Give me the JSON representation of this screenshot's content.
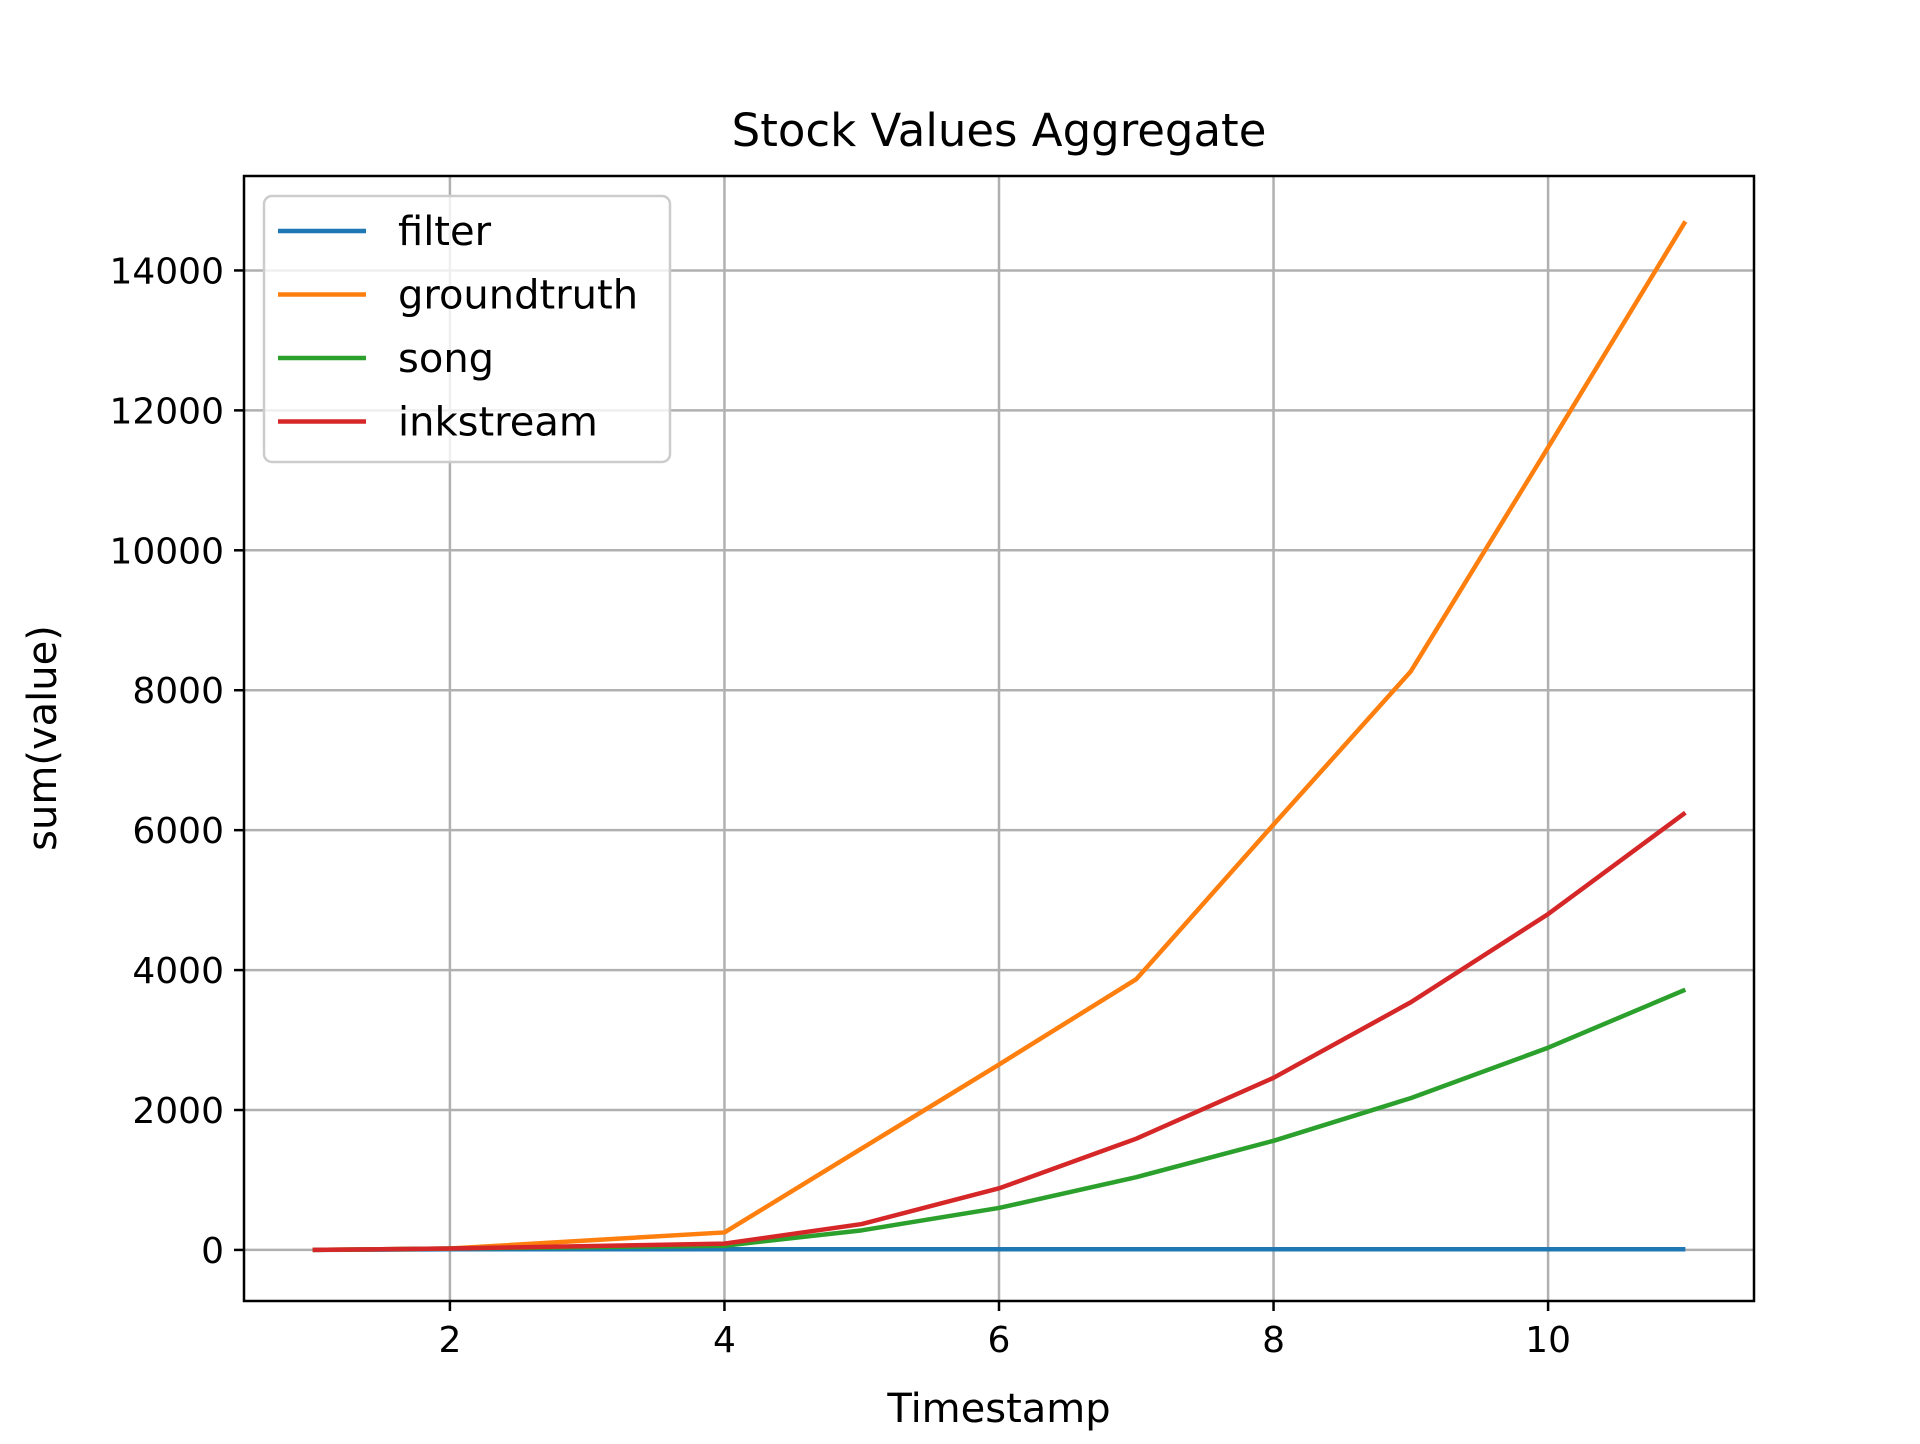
{
  "chart_data": {
    "type": "line",
    "title": "Stock Values Aggregate",
    "xlabel": "Timestamp",
    "ylabel": "sum(value)",
    "xlim": [
      0.5,
      11.5
    ],
    "ylim": [
      -730,
      15350
    ],
    "x_ticks": [
      2,
      4,
      6,
      8,
      10
    ],
    "x_tick_labels": [
      "2",
      "4",
      "6",
      "8",
      "10"
    ],
    "y_ticks": [
      0,
      2000,
      4000,
      6000,
      8000,
      10000,
      12000,
      14000
    ],
    "y_tick_labels": [
      "0",
      "2000",
      "4000",
      "6000",
      "8000",
      "10000",
      "12000",
      "14000"
    ],
    "grid": true,
    "legend_position": "top-left",
    "x": [
      1,
      2,
      4,
      5,
      6,
      7,
      8,
      9,
      10,
      11
    ],
    "series": [
      {
        "name": "filter",
        "color": "#1f77b4",
        "values": [
          0,
          10,
          10,
          10,
          10,
          10,
          10,
          10,
          10,
          10
        ]
      },
      {
        "name": "groundtruth",
        "color": "#ff7f0e",
        "values": [
          0,
          20,
          250,
          1450,
          2650,
          3870,
          6080,
          8270,
          11470,
          14700
        ]
      },
      {
        "name": "song",
        "color": "#2ca02c",
        "values": [
          0,
          20,
          60,
          280,
          600,
          1040,
          1560,
          2170,
          2890,
          3720
        ]
      },
      {
        "name": "inkstream",
        "color": "#d62728",
        "values": [
          0,
          20,
          90,
          370,
          880,
          1590,
          2460,
          3540,
          4800,
          6250
        ]
      }
    ]
  }
}
